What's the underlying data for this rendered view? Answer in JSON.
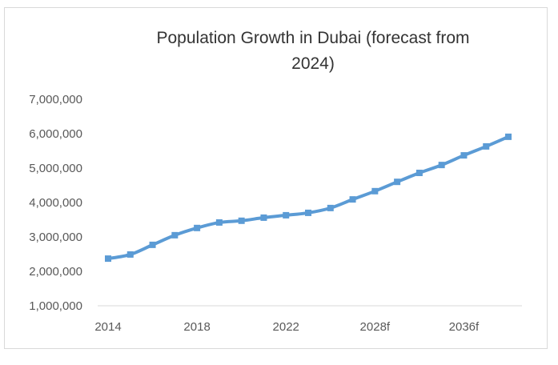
{
  "chart_data": {
    "type": "line",
    "title": "Population Growth in Dubai (forecast from 2024)",
    "title_lines": [
      "Population Growth in Dubai (forecast from",
      "2024)"
    ],
    "xlabel": "",
    "ylabel": "",
    "ylim": [
      1000000,
      7000000
    ],
    "y_ticks": [
      1000000,
      2000000,
      3000000,
      4000000,
      5000000,
      6000000,
      7000000
    ],
    "y_tick_labels": [
      "1,000,000",
      "2,000,000",
      "3,000,000",
      "4,000,000",
      "5,000,000",
      "6,000,000",
      "7,000,000"
    ],
    "x_tick_labels": [
      {
        "index": 0,
        "label": "2014"
      },
      {
        "index": 4,
        "label": "2018"
      },
      {
        "index": 8,
        "label": "2022"
      },
      {
        "index": 12,
        "label": "2028f"
      },
      {
        "index": 16,
        "label": "2036f"
      }
    ],
    "grid": false,
    "legend": "none",
    "series": [
      {
        "name": "Population",
        "color": "#5b9bd5",
        "marker": "square",
        "smooth": true,
        "values": [
          2370000,
          2490000,
          2770000,
          3050000,
          3260000,
          3420000,
          3470000,
          3560000,
          3630000,
          3700000,
          3840000,
          4090000,
          4330000,
          4600000,
          4860000,
          5090000,
          5370000,
          5630000,
          5910000
        ]
      }
    ],
    "axis_color": "#d9d9d9"
  }
}
